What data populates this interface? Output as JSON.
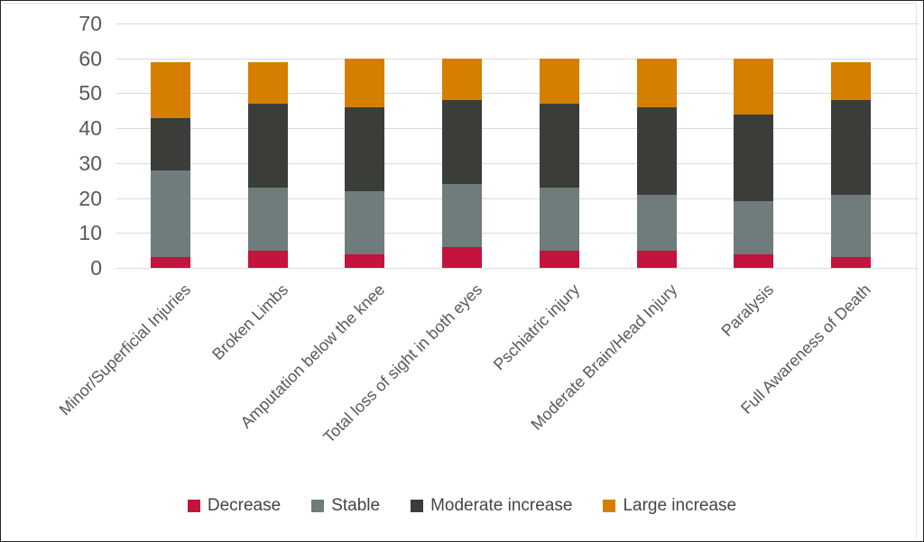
{
  "chart_data": {
    "type": "bar",
    "stacked": true,
    "title": "",
    "xlabel": "",
    "ylabel": "",
    "categories": [
      "Minor/Superficial Injuries",
      "Broken Limbs",
      "Amputation below the knee",
      "Total loss of sight in both eyes",
      "Pschiatric injury",
      "Moderate Brain/Head Injury",
      "Paralysis",
      "Full Awareness of Death"
    ],
    "series": [
      {
        "name": "Decrease",
        "color": "#C4133D",
        "values": [
          3,
          5,
          4,
          6,
          5,
          5,
          4,
          3
        ]
      },
      {
        "name": "Stable",
        "color": "#6F7C7B",
        "values": [
          25,
          18,
          18,
          18,
          18,
          16,
          15,
          18
        ]
      },
      {
        "name": "Moderate increase",
        "color": "#3A3D38",
        "values": [
          15,
          24,
          24,
          24,
          24,
          25,
          25,
          27
        ]
      },
      {
        "name": "Large increase",
        "color": "#D57E00",
        "values": [
          16,
          12,
          14,
          12,
          13,
          14,
          16,
          11
        ]
      }
    ],
    "ylim": [
      0,
      70
    ],
    "yticks": [
      0,
      10,
      20,
      30,
      40,
      50,
      60,
      70
    ],
    "grid": true,
    "legend_position": "bottom",
    "colors": {
      "gridline": "#D9D9D9",
      "axis_text": "#595959",
      "category_text": "#595959",
      "legend_text": "#454545",
      "background": "#FFFFFF"
    }
  }
}
